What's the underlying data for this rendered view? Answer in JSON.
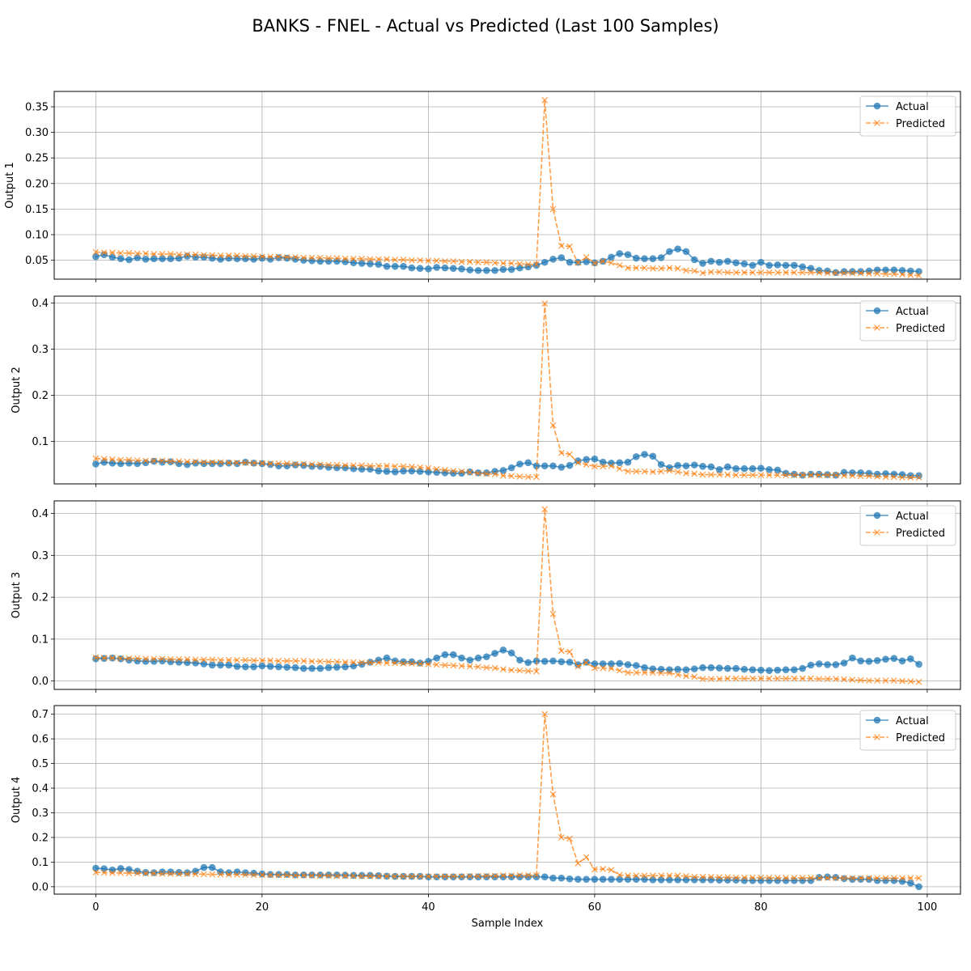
{
  "figure": {
    "title": "BANKS - FNEL - Actual vs Predicted (Last 100 Samples)",
    "xlabel": "Sample Index",
    "xticks": [
      0,
      20,
      40,
      60,
      80,
      100
    ],
    "xlim": [
      -5,
      104
    ],
    "colors": {
      "actual": "#1f77b4",
      "predicted": "#ff7f0e"
    },
    "legend": {
      "actual": "Actual",
      "predicted": "Predicted",
      "placement": "top-right"
    },
    "grid": true
  },
  "chart_data": [
    {
      "type": "line",
      "ylabel": "Output 1",
      "ylim": [
        0.013,
        0.38
      ],
      "yticks": [
        "0.05",
        "0.10",
        "0.15",
        "0.20",
        "0.25",
        "0.30",
        "0.35"
      ],
      "series": [
        {
          "name": "Actual",
          "marker": "o",
          "linestyle": "solid",
          "values": [
            0.057,
            0.061,
            0.056,
            0.053,
            0.051,
            0.055,
            0.052,
            0.053,
            0.053,
            0.053,
            0.054,
            0.058,
            0.056,
            0.056,
            0.054,
            0.052,
            0.054,
            0.053,
            0.053,
            0.052,
            0.054,
            0.052,
            0.055,
            0.054,
            0.052,
            0.05,
            0.049,
            0.048,
            0.048,
            0.048,
            0.047,
            0.045,
            0.044,
            0.043,
            0.042,
            0.038,
            0.038,
            0.038,
            0.035,
            0.034,
            0.033,
            0.036,
            0.035,
            0.034,
            0.033,
            0.031,
            0.03,
            0.03,
            0.03,
            0.032,
            0.032,
            0.035,
            0.037,
            0.04,
            0.046,
            0.052,
            0.055,
            0.046,
            0.046,
            0.047,
            0.045,
            0.048,
            0.056,
            0.063,
            0.061,
            0.054,
            0.053,
            0.053,
            0.055,
            0.067,
            0.072,
            0.067,
            0.051,
            0.044,
            0.048,
            0.046,
            0.048,
            0.045,
            0.043,
            0.04,
            0.046,
            0.04,
            0.041,
            0.04,
            0.04,
            0.037,
            0.034,
            0.03,
            0.029,
            0.026,
            0.028,
            0.028,
            0.028,
            0.029,
            0.031,
            0.031,
            0.031,
            0.03,
            0.029,
            0.028
          ]
        },
        {
          "name": "Predicted",
          "marker": "x",
          "linestyle": "dashed",
          "values": [
            0.066,
            0.065,
            0.065,
            0.064,
            0.064,
            0.063,
            0.063,
            0.062,
            0.062,
            0.062,
            0.061,
            0.061,
            0.061,
            0.06,
            0.06,
            0.059,
            0.059,
            0.059,
            0.058,
            0.058,
            0.057,
            0.057,
            0.057,
            0.056,
            0.056,
            0.055,
            0.055,
            0.055,
            0.054,
            0.054,
            0.053,
            0.053,
            0.053,
            0.052,
            0.052,
            0.052,
            0.051,
            0.051,
            0.05,
            0.05,
            0.049,
            0.049,
            0.048,
            0.048,
            0.047,
            0.047,
            0.046,
            0.046,
            0.045,
            0.044,
            0.044,
            0.043,
            0.042,
            0.042,
            0.363,
            0.15,
            0.078,
            0.077,
            0.045,
            0.056,
            0.044,
            0.048,
            0.045,
            0.04,
            0.035,
            0.035,
            0.035,
            0.034,
            0.034,
            0.035,
            0.034,
            0.03,
            0.029,
            0.025,
            0.027,
            0.027,
            0.026,
            0.026,
            0.026,
            0.026,
            0.026,
            0.026,
            0.026,
            0.026,
            0.026,
            0.026,
            0.026,
            0.026,
            0.025,
            0.025,
            0.025,
            0.025,
            0.025,
            0.024,
            0.024,
            0.023,
            0.023,
            0.022,
            0.021,
            0.02
          ]
        }
      ]
    },
    {
      "type": "line",
      "ylabel": "Output 2",
      "ylim": [
        0.008,
        0.415
      ],
      "yticks": [
        "0.1",
        "0.2",
        "0.3",
        "0.4"
      ],
      "series": [
        {
          "name": "Actual",
          "marker": "o",
          "linestyle": "solid",
          "values": [
            0.051,
            0.055,
            0.053,
            0.052,
            0.053,
            0.052,
            0.054,
            0.057,
            0.055,
            0.056,
            0.052,
            0.05,
            0.053,
            0.052,
            0.052,
            0.052,
            0.053,
            0.052,
            0.055,
            0.053,
            0.052,
            0.05,
            0.047,
            0.047,
            0.049,
            0.048,
            0.046,
            0.046,
            0.044,
            0.043,
            0.043,
            0.041,
            0.04,
            0.04,
            0.036,
            0.035,
            0.034,
            0.036,
            0.036,
            0.035,
            0.034,
            0.033,
            0.032,
            0.031,
            0.031,
            0.034,
            0.032,
            0.032,
            0.035,
            0.037,
            0.043,
            0.051,
            0.054,
            0.047,
            0.047,
            0.047,
            0.044,
            0.048,
            0.058,
            0.061,
            0.062,
            0.055,
            0.053,
            0.054,
            0.055,
            0.067,
            0.072,
            0.068,
            0.05,
            0.043,
            0.048,
            0.047,
            0.049,
            0.046,
            0.045,
            0.039,
            0.045,
            0.041,
            0.041,
            0.041,
            0.042,
            0.039,
            0.038,
            0.031,
            0.029,
            0.027,
            0.029,
            0.029,
            0.028,
            0.027,
            0.033,
            0.032,
            0.032,
            0.031,
            0.029,
            0.03,
            0.029,
            0.028,
            0.026,
            0.026
          ]
        },
        {
          "name": "Predicted",
          "marker": "x",
          "linestyle": "dashed",
          "values": [
            0.063,
            0.062,
            0.061,
            0.06,
            0.06,
            0.059,
            0.058,
            0.058,
            0.058,
            0.057,
            0.057,
            0.056,
            0.056,
            0.055,
            0.055,
            0.055,
            0.054,
            0.054,
            0.054,
            0.053,
            0.053,
            0.052,
            0.052,
            0.052,
            0.051,
            0.051,
            0.05,
            0.05,
            0.049,
            0.049,
            0.048,
            0.048,
            0.048,
            0.047,
            0.047,
            0.047,
            0.046,
            0.046,
            0.045,
            0.044,
            0.042,
            0.04,
            0.038,
            0.036,
            0.035,
            0.033,
            0.031,
            0.03,
            0.029,
            0.026,
            0.025,
            0.024,
            0.023,
            0.023,
            0.399,
            0.135,
            0.075,
            0.072,
            0.054,
            0.05,
            0.046,
            0.046,
            0.047,
            0.041,
            0.035,
            0.035,
            0.035,
            0.034,
            0.035,
            0.037,
            0.034,
            0.031,
            0.03,
            0.028,
            0.028,
            0.028,
            0.028,
            0.027,
            0.027,
            0.027,
            0.027,
            0.027,
            0.027,
            0.027,
            0.027,
            0.027,
            0.027,
            0.027,
            0.027,
            0.027,
            0.026,
            0.026,
            0.025,
            0.025,
            0.024,
            0.023,
            0.023,
            0.022,
            0.022,
            0.022
          ]
        }
      ]
    },
    {
      "type": "line",
      "ylabel": "Output 3",
      "ylim": [
        -0.02,
        0.43
      ],
      "yticks": [
        "0.0",
        "0.1",
        "0.2",
        "0.3",
        "0.4"
      ],
      "series": [
        {
          "name": "Actual",
          "marker": "o",
          "linestyle": "solid",
          "values": [
            0.053,
            0.054,
            0.055,
            0.053,
            0.05,
            0.048,
            0.047,
            0.047,
            0.048,
            0.046,
            0.045,
            0.044,
            0.043,
            0.041,
            0.038,
            0.038,
            0.038,
            0.035,
            0.034,
            0.034,
            0.036,
            0.035,
            0.034,
            0.033,
            0.032,
            0.03,
            0.03,
            0.03,
            0.032,
            0.033,
            0.034,
            0.036,
            0.04,
            0.045,
            0.05,
            0.055,
            0.048,
            0.046,
            0.046,
            0.043,
            0.047,
            0.055,
            0.063,
            0.063,
            0.055,
            0.05,
            0.055,
            0.058,
            0.066,
            0.074,
            0.067,
            0.05,
            0.044,
            0.048,
            0.047,
            0.048,
            0.046,
            0.045,
            0.039,
            0.045,
            0.041,
            0.041,
            0.041,
            0.042,
            0.039,
            0.037,
            0.032,
            0.029,
            0.028,
            0.027,
            0.028,
            0.027,
            0.029,
            0.032,
            0.032,
            0.031,
            0.03,
            0.03,
            0.028,
            0.027,
            0.026,
            0.025,
            0.026,
            0.027,
            0.027,
            0.03,
            0.038,
            0.041,
            0.039,
            0.039,
            0.043,
            0.055,
            0.048,
            0.047,
            0.049,
            0.052,
            0.054,
            0.048,
            0.053,
            0.04
          ]
        },
        {
          "name": "Predicted",
          "marker": "x",
          "linestyle": "dashed",
          "values": [
            0.056,
            0.055,
            0.055,
            0.054,
            0.054,
            0.054,
            0.053,
            0.053,
            0.053,
            0.052,
            0.052,
            0.052,
            0.051,
            0.051,
            0.051,
            0.05,
            0.05,
            0.05,
            0.05,
            0.049,
            0.049,
            0.049,
            0.048,
            0.048,
            0.048,
            0.048,
            0.047,
            0.047,
            0.046,
            0.046,
            0.045,
            0.045,
            0.044,
            0.044,
            0.044,
            0.043,
            0.043,
            0.042,
            0.042,
            0.041,
            0.04,
            0.039,
            0.038,
            0.037,
            0.036,
            0.035,
            0.034,
            0.032,
            0.031,
            0.028,
            0.026,
            0.025,
            0.024,
            0.023,
            0.41,
            0.16,
            0.072,
            0.07,
            0.035,
            0.044,
            0.031,
            0.031,
            0.03,
            0.025,
            0.02,
            0.02,
            0.02,
            0.02,
            0.019,
            0.019,
            0.015,
            0.012,
            0.01,
            0.005,
            0.005,
            0.005,
            0.006,
            0.006,
            0.006,
            0.006,
            0.006,
            0.006,
            0.006,
            0.006,
            0.006,
            0.006,
            0.006,
            0.005,
            0.005,
            0.005,
            0.004,
            0.003,
            0.002,
            0.001,
            0.001,
            0.001,
            0.001,
            0.0,
            -0.001,
            -0.002
          ]
        }
      ]
    },
    {
      "type": "line",
      "ylabel": "Output 4",
      "ylim": [
        -0.03,
        0.735
      ],
      "yticks": [
        "0.0",
        "0.1",
        "0.2",
        "0.3",
        "0.4",
        "0.5",
        "0.6",
        "0.7"
      ],
      "series": [
        {
          "name": "Actual",
          "marker": "o",
          "linestyle": "solid",
          "values": [
            0.075,
            0.073,
            0.068,
            0.074,
            0.07,
            0.063,
            0.058,
            0.057,
            0.06,
            0.06,
            0.058,
            0.057,
            0.063,
            0.078,
            0.078,
            0.06,
            0.057,
            0.06,
            0.057,
            0.055,
            0.052,
            0.05,
            0.05,
            0.05,
            0.048,
            0.048,
            0.048,
            0.048,
            0.048,
            0.048,
            0.047,
            0.046,
            0.046,
            0.046,
            0.045,
            0.043,
            0.042,
            0.042,
            0.042,
            0.042,
            0.04,
            0.04,
            0.04,
            0.04,
            0.04,
            0.04,
            0.04,
            0.04,
            0.04,
            0.04,
            0.04,
            0.04,
            0.04,
            0.04,
            0.04,
            0.035,
            0.035,
            0.032,
            0.03,
            0.03,
            0.03,
            0.03,
            0.03,
            0.03,
            0.03,
            0.03,
            0.03,
            0.028,
            0.028,
            0.028,
            0.028,
            0.028,
            0.028,
            0.028,
            0.028,
            0.027,
            0.027,
            0.027,
            0.025,
            0.025,
            0.025,
            0.025,
            0.025,
            0.025,
            0.025,
            0.025,
            0.025,
            0.038,
            0.04,
            0.038,
            0.033,
            0.03,
            0.03,
            0.03,
            0.025,
            0.025,
            0.025,
            0.022,
            0.015,
            0.0
          ]
        },
        {
          "name": "Predicted",
          "marker": "x",
          "linestyle": "dashed",
          "values": [
            0.058,
            0.057,
            0.056,
            0.056,
            0.055,
            0.055,
            0.054,
            0.054,
            0.053,
            0.053,
            0.052,
            0.052,
            0.051,
            0.051,
            0.05,
            0.05,
            0.05,
            0.049,
            0.049,
            0.048,
            0.048,
            0.047,
            0.047,
            0.047,
            0.046,
            0.046,
            0.045,
            0.045,
            0.045,
            0.044,
            0.044,
            0.044,
            0.043,
            0.043,
            0.043,
            0.043,
            0.042,
            0.042,
            0.042,
            0.042,
            0.042,
            0.042,
            0.042,
            0.042,
            0.042,
            0.043,
            0.043,
            0.044,
            0.044,
            0.045,
            0.045,
            0.046,
            0.046,
            0.047,
            0.7,
            0.375,
            0.2,
            0.195,
            0.095,
            0.12,
            0.07,
            0.072,
            0.068,
            0.048,
            0.045,
            0.045,
            0.045,
            0.045,
            0.045,
            0.045,
            0.045,
            0.043,
            0.04,
            0.04,
            0.04,
            0.038,
            0.038,
            0.037,
            0.037,
            0.037,
            0.037,
            0.037,
            0.036,
            0.036,
            0.036,
            0.036,
            0.036,
            0.035,
            0.035,
            0.035,
            0.035,
            0.035,
            0.035,
            0.035,
            0.035,
            0.035,
            0.035,
            0.035,
            0.035,
            0.035
          ]
        }
      ]
    }
  ]
}
